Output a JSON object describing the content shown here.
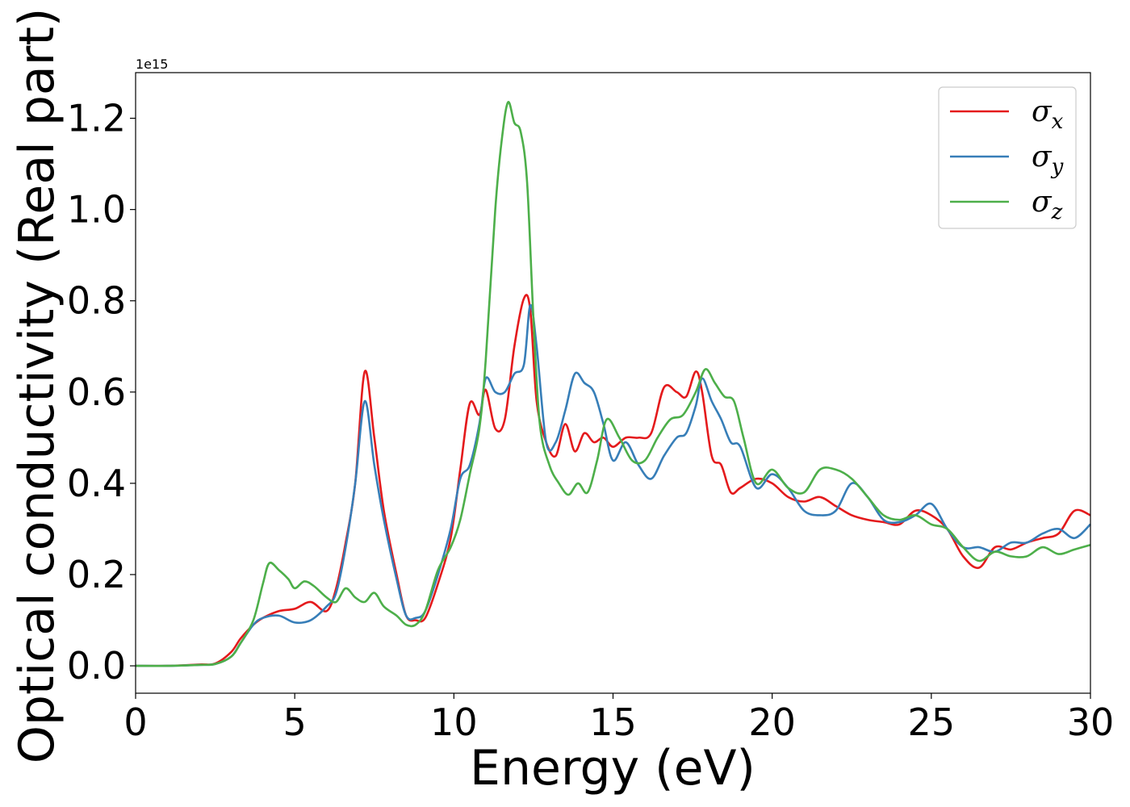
{
  "chart_data": {
    "type": "line",
    "title": "",
    "xlabel": "Energy (eV)",
    "ylabel": "Optical conductivity (Real part)",
    "y_offset_label": "1e15",
    "xlim": [
      0,
      30
    ],
    "ylim": [
      -0.06,
      1.3
    ],
    "xticks": [
      0,
      5,
      10,
      15,
      20,
      25,
      30
    ],
    "xtick_labels": [
      "0",
      "5",
      "10",
      "15",
      "20",
      "25",
      "30"
    ],
    "yticks": [
      0.0,
      0.2,
      0.4,
      0.6,
      0.8,
      1.0,
      1.2
    ],
    "ytick_labels": [
      "0.0",
      "0.2",
      "0.4",
      "0.6",
      "0.8",
      "1.0",
      "1.2"
    ],
    "grid": false,
    "legend_position": "top-right",
    "series": [
      {
        "name": "σx",
        "label_base": "σ",
        "label_sub": "x",
        "color": "#e41a1c",
        "x": [
          0,
          1,
          2,
          2.5,
          3,
          3.3,
          3.7,
          4.0,
          4.5,
          5.0,
          5.5,
          6.0,
          6.3,
          6.6,
          6.9,
          7.2,
          7.5,
          7.8,
          8.2,
          8.5,
          8.8,
          9.1,
          9.5,
          9.9,
          10.2,
          10.5,
          10.8,
          11.0,
          11.3,
          11.6,
          11.9,
          12.2,
          12.4,
          12.6,
          12.9,
          13.2,
          13.5,
          13.8,
          14.1,
          14.4,
          14.7,
          15.0,
          15.4,
          15.8,
          16.2,
          16.6,
          17.0,
          17.3,
          17.6,
          17.8,
          18.1,
          18.4,
          18.7,
          19.0,
          19.5,
          20.0,
          20.5,
          21.0,
          21.5,
          22.0,
          22.5,
          23.0,
          23.5,
          24.0,
          24.5,
          25.0,
          25.5,
          26.0,
          26.5,
          27.0,
          27.5,
          28.0,
          28.5,
          29.0,
          29.5,
          30.0
        ],
        "y": [
          0.0,
          0.0,
          0.003,
          0.005,
          0.03,
          0.06,
          0.09,
          0.105,
          0.12,
          0.125,
          0.14,
          0.12,
          0.17,
          0.27,
          0.4,
          0.645,
          0.5,
          0.34,
          0.2,
          0.11,
          0.1,
          0.105,
          0.18,
          0.28,
          0.43,
          0.575,
          0.55,
          0.605,
          0.52,
          0.54,
          0.7,
          0.805,
          0.78,
          0.58,
          0.49,
          0.46,
          0.53,
          0.47,
          0.51,
          0.49,
          0.5,
          0.48,
          0.5,
          0.5,
          0.51,
          0.61,
          0.6,
          0.59,
          0.645,
          0.6,
          0.46,
          0.44,
          0.38,
          0.39,
          0.41,
          0.4,
          0.37,
          0.36,
          0.37,
          0.35,
          0.33,
          0.32,
          0.315,
          0.31,
          0.34,
          0.33,
          0.3,
          0.24,
          0.215,
          0.26,
          0.255,
          0.27,
          0.28,
          0.29,
          0.34,
          0.33
        ]
      },
      {
        "name": "σy",
        "label_base": "σ",
        "label_sub": "y",
        "color": "#377eb8",
        "x": [
          0,
          1,
          2,
          2.5,
          3,
          3.3,
          3.7,
          4.0,
          4.5,
          5.0,
          5.5,
          6.0,
          6.3,
          6.6,
          6.9,
          7.2,
          7.5,
          7.8,
          8.2,
          8.5,
          8.8,
          9.1,
          9.5,
          9.9,
          10.2,
          10.5,
          10.8,
          11.0,
          11.3,
          11.6,
          11.9,
          12.2,
          12.4,
          12.6,
          12.9,
          13.2,
          13.5,
          13.8,
          14.1,
          14.4,
          14.7,
          15.0,
          15.4,
          15.8,
          16.2,
          16.6,
          17.0,
          17.3,
          17.6,
          17.8,
          18.1,
          18.4,
          18.7,
          19.0,
          19.5,
          20.0,
          20.5,
          21.0,
          21.5,
          22.0,
          22.5,
          23.0,
          23.5,
          24.0,
          24.5,
          25.0,
          25.5,
          26.0,
          26.5,
          27.0,
          27.5,
          28.0,
          28.5,
          29.0,
          29.5,
          30.0
        ],
        "y": [
          0.0,
          0.0,
          0.002,
          0.004,
          0.02,
          0.05,
          0.09,
          0.105,
          0.11,
          0.095,
          0.1,
          0.13,
          0.16,
          0.26,
          0.4,
          0.58,
          0.44,
          0.32,
          0.19,
          0.11,
          0.105,
          0.12,
          0.2,
          0.3,
          0.41,
          0.44,
          0.53,
          0.63,
          0.6,
          0.6,
          0.64,
          0.66,
          0.79,
          0.7,
          0.49,
          0.49,
          0.56,
          0.64,
          0.62,
          0.6,
          0.53,
          0.45,
          0.49,
          0.44,
          0.41,
          0.46,
          0.5,
          0.51,
          0.57,
          0.63,
          0.58,
          0.54,
          0.49,
          0.48,
          0.39,
          0.42,
          0.39,
          0.34,
          0.33,
          0.34,
          0.4,
          0.37,
          0.32,
          0.315,
          0.33,
          0.355,
          0.3,
          0.26,
          0.26,
          0.25,
          0.27,
          0.27,
          0.29,
          0.3,
          0.28,
          0.31
        ]
      },
      {
        "name": "σz",
        "label_base": "σ",
        "label_sub": "z",
        "color": "#4daf4a",
        "x": [
          0,
          1,
          2,
          2.5,
          3,
          3.3,
          3.7,
          4.0,
          4.2,
          4.5,
          4.8,
          5.0,
          5.3,
          5.6,
          6.0,
          6.3,
          6.6,
          6.9,
          7.2,
          7.5,
          7.8,
          8.2,
          8.5,
          8.8,
          9.1,
          9.5,
          9.9,
          10.2,
          10.5,
          10.8,
          11.0,
          11.3,
          11.5,
          11.7,
          11.9,
          12.1,
          12.3,
          12.5,
          12.7,
          13.0,
          13.3,
          13.6,
          13.9,
          14.2,
          14.5,
          14.8,
          15.2,
          15.6,
          16.0,
          16.4,
          16.8,
          17.2,
          17.6,
          17.9,
          18.2,
          18.5,
          18.8,
          19.1,
          19.5,
          20.0,
          20.5,
          21.0,
          21.5,
          22.0,
          22.5,
          23.0,
          23.5,
          24.0,
          24.5,
          25.0,
          25.5,
          26.0,
          26.5,
          27.0,
          27.5,
          28.0,
          28.5,
          29.0,
          29.5,
          30.0
        ],
        "y": [
          0.0,
          0.0,
          0.002,
          0.004,
          0.02,
          0.05,
          0.1,
          0.18,
          0.225,
          0.21,
          0.19,
          0.17,
          0.185,
          0.175,
          0.15,
          0.14,
          0.17,
          0.15,
          0.14,
          0.16,
          0.13,
          0.11,
          0.09,
          0.09,
          0.12,
          0.21,
          0.26,
          0.32,
          0.42,
          0.52,
          0.67,
          1.0,
          1.15,
          1.235,
          1.19,
          1.17,
          1.06,
          0.76,
          0.53,
          0.44,
          0.4,
          0.375,
          0.4,
          0.38,
          0.45,
          0.54,
          0.5,
          0.45,
          0.45,
          0.5,
          0.54,
          0.55,
          0.6,
          0.65,
          0.62,
          0.59,
          0.58,
          0.5,
          0.4,
          0.43,
          0.39,
          0.38,
          0.43,
          0.43,
          0.41,
          0.37,
          0.33,
          0.32,
          0.33,
          0.31,
          0.3,
          0.26,
          0.23,
          0.25,
          0.24,
          0.24,
          0.26,
          0.245,
          0.255,
          0.265
        ]
      }
    ]
  }
}
